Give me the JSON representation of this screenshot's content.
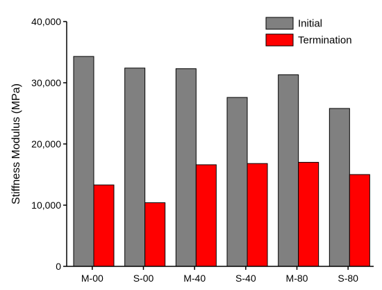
{
  "chart_data": {
    "type": "bar",
    "title": "",
    "xlabel": "",
    "ylabel": "Stiffness Modulus (MPa)",
    "ylim": [
      0,
      40000
    ],
    "yticks": [
      0,
      10000,
      20000,
      30000,
      40000
    ],
    "ytick_labels": [
      "0",
      "10,000",
      "20,000",
      "30,000",
      "40,000"
    ],
    "categories": [
      "M-00",
      "S-00",
      "M-40",
      "S-40",
      "M-80",
      "S-80"
    ],
    "series": [
      {
        "name": "Initial",
        "color": "#808080",
        "values": [
          34300,
          32400,
          32300,
          27600,
          31300,
          25800
        ]
      },
      {
        "name": "Termination",
        "color": "#ff0000",
        "values": [
          13300,
          10400,
          16600,
          16800,
          17000,
          15000
        ]
      }
    ],
    "legend_position": "top-right",
    "grid": false
  }
}
